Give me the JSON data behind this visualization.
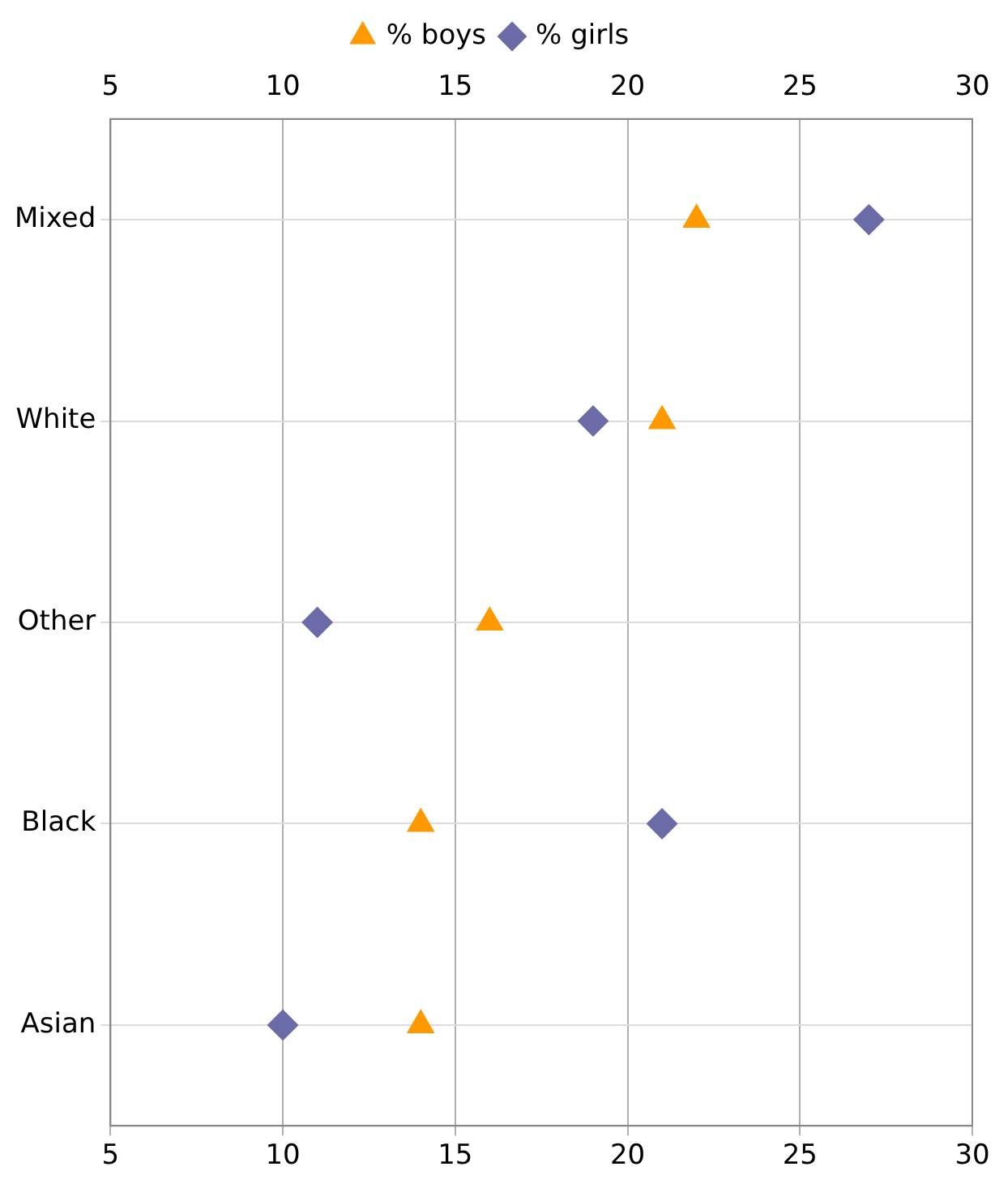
{
  "chart_data": {
    "type": "scatter",
    "orientation": "horizontal",
    "categories": [
      "Mixed",
      "White",
      "Other",
      "Black",
      "Asian"
    ],
    "series": [
      {
        "name": "% boys",
        "color": "#ff9900",
        "marker": "triangle",
        "values": [
          22,
          21,
          16,
          14,
          14
        ]
      },
      {
        "name": "% girls",
        "color": "#6b6ba8",
        "marker": "diamond",
        "values": [
          27,
          19,
          11,
          21,
          10
        ]
      }
    ],
    "xlim": [
      5,
      30
    ],
    "xticks": [
      5,
      10,
      15,
      20,
      25,
      30
    ],
    "x2lim": [
      5,
      30
    ],
    "x2ticks": [
      5,
      10,
      15,
      20,
      25,
      30
    ],
    "grid": true,
    "legend": "top"
  }
}
